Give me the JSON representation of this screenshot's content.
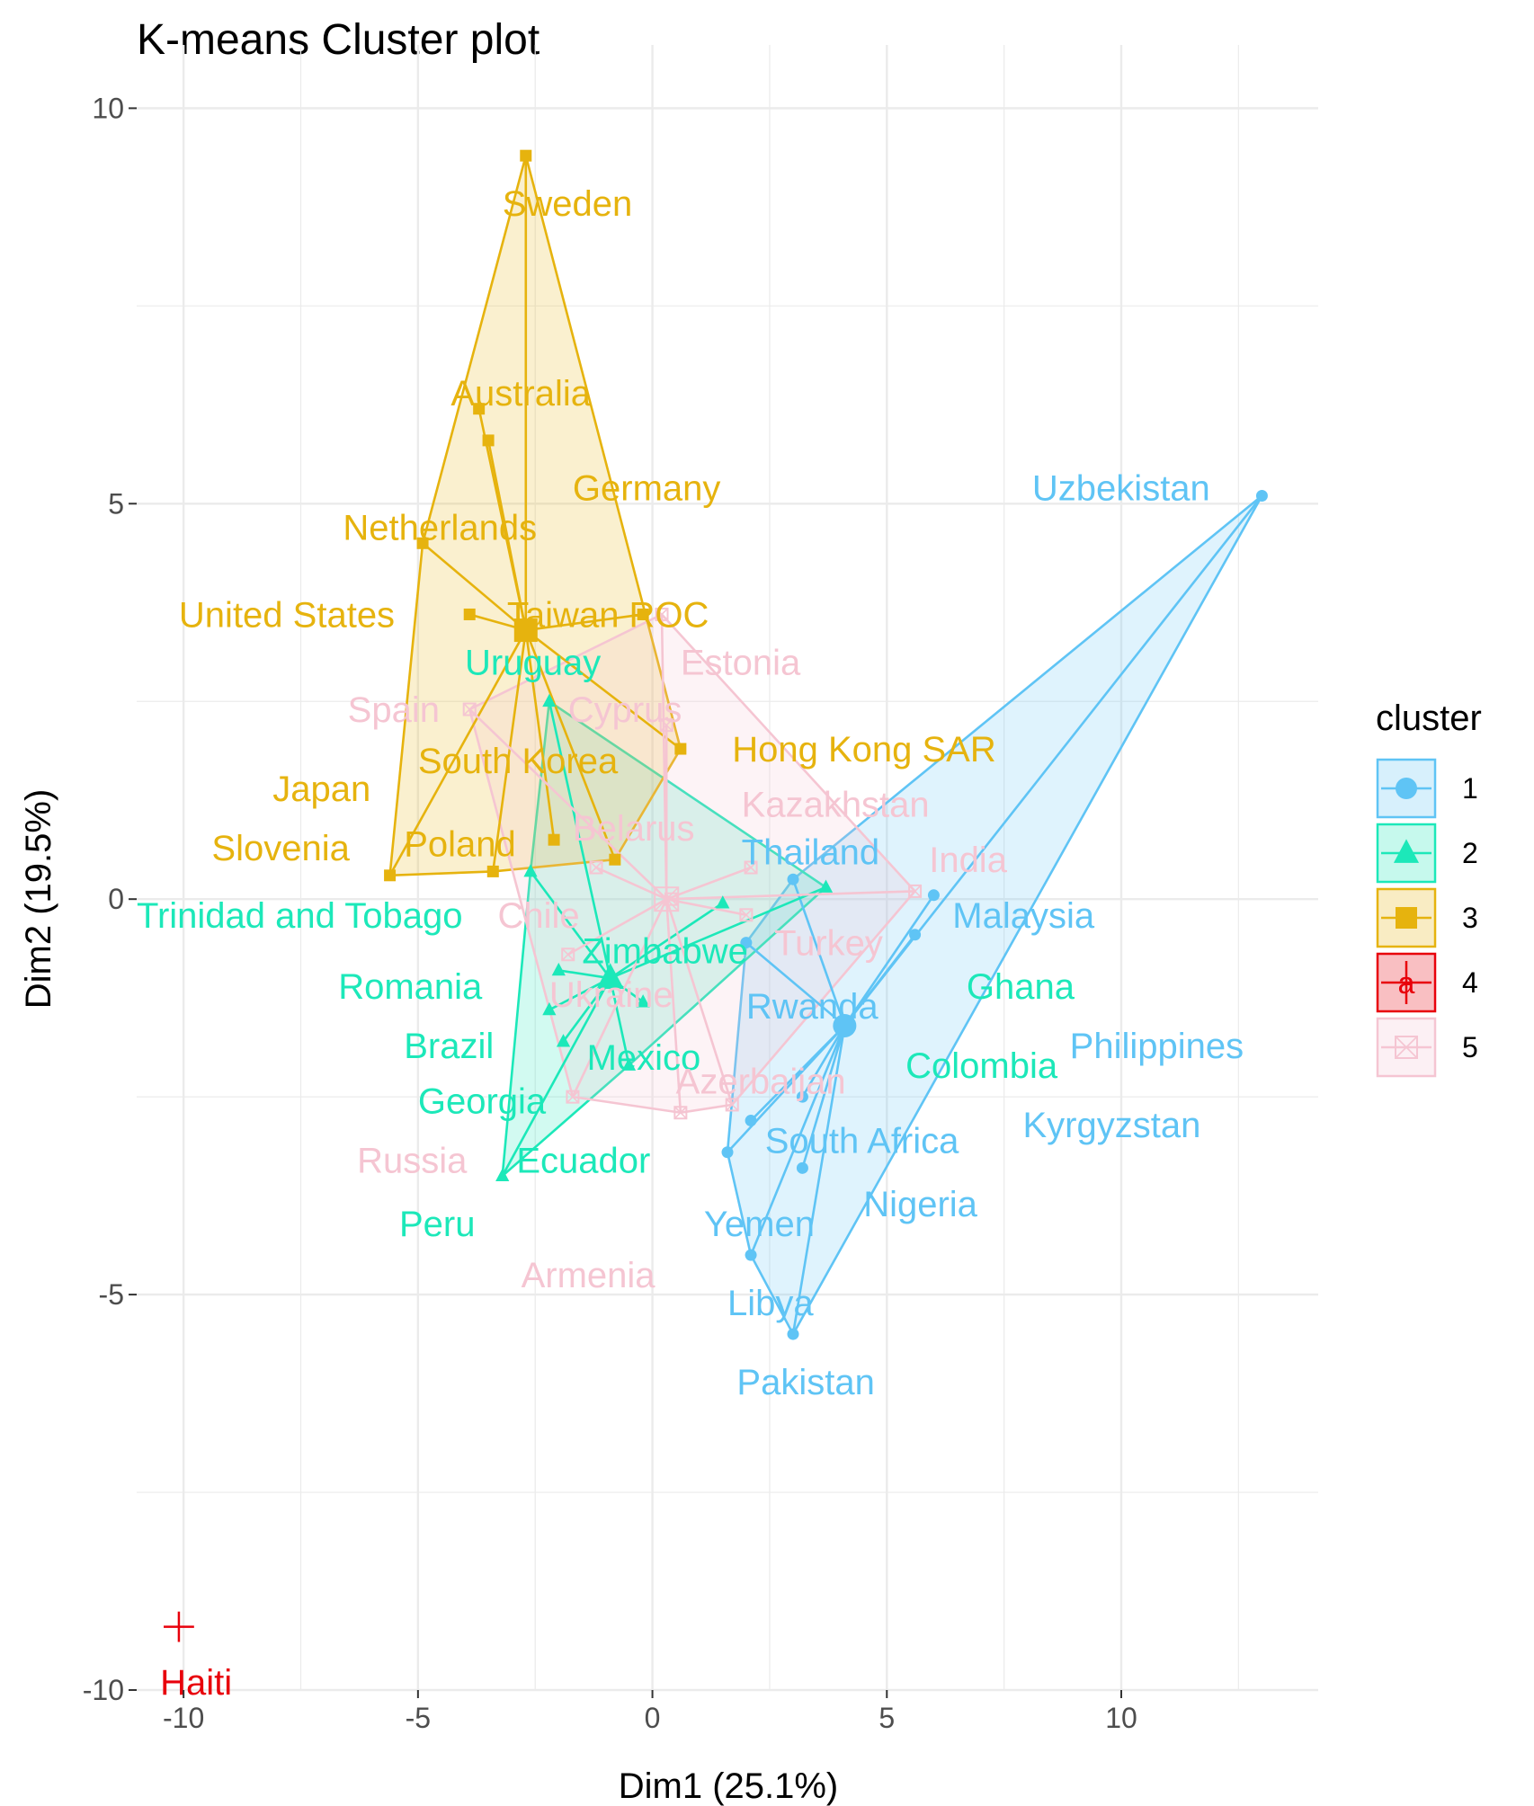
{
  "chart_data": {
    "type": "scatter",
    "title": "K-means Cluster plot",
    "xlabel": "Dim1 (25.1%)",
    "ylabel": "Dim2 (19.5%)",
    "xlim": [
      -11,
      14.2
    ],
    "ylim": [
      -10,
      10.8
    ],
    "xticks": [
      -10,
      -5,
      0,
      5,
      10
    ],
    "xtick_labels": [
      "-10",
      "-5",
      "0",
      "5",
      "10"
    ],
    "yticks": [
      -10,
      -5,
      0,
      5,
      10
    ],
    "ytick_labels": [
      "-10",
      "-5",
      "0",
      "5",
      "10"
    ],
    "grid": true,
    "legend": {
      "title": "cluster",
      "position": "right",
      "labels": [
        "1",
        "2",
        "3",
        "4",
        "5"
      ]
    },
    "legend_glyphs": [
      "",
      "",
      "",
      "a",
      ""
    ],
    "series": [
      {
        "name": "1",
        "color": "#5fc4f5",
        "shape": "circle",
        "centroid": [
          4.1,
          -1.6
        ],
        "points": [
          {
            "label": "Uzbekistan",
            "x": 13.0,
            "y": 5.1
          },
          {
            "label": "Thailand",
            "x": 3.0,
            "y": 0.25
          },
          {
            "label": "Malaysia",
            "x": 6.0,
            "y": 0.05
          },
          {
            "label": "Ghana",
            "x": 5.6,
            "y": -0.45
          },
          {
            "label": "Rwanda",
            "x": 2.0,
            "y": -0.55
          },
          {
            "label": "Kyrgyzstan",
            "x": 3.2,
            "y": -2.5
          },
          {
            "label": "South Africa",
            "x": 2.1,
            "y": -2.8
          },
          {
            "label": "Yemen",
            "x": 1.6,
            "y": -3.2
          },
          {
            "label": "Nigeria",
            "x": 3.2,
            "y": -3.4
          },
          {
            "label": "Libya",
            "x": 2.1,
            "y": -4.5
          },
          {
            "label": "Pakistan",
            "x": 3.0,
            "y": -5.5
          }
        ]
      },
      {
        "name": "2",
        "color": "#1ce8b9",
        "shape": "triangle",
        "centroid": [
          -0.9,
          -1.0
        ],
        "points": [
          {
            "label": "Uruguay",
            "x": -2.2,
            "y": 2.5
          },
          {
            "label": "Trinidad and Tobago",
            "x": -2.6,
            "y": 0.35
          },
          {
            "label": "Colombia",
            "x": 3.7,
            "y": 0.15
          },
          {
            "label": "Zimbabwe",
            "x": 1.5,
            "y": -0.05
          },
          {
            "label": "Romania",
            "x": -2.0,
            "y": -0.9
          },
          {
            "label": "Mexico",
            "x": -0.2,
            "y": -1.3
          },
          {
            "label": "Brazil",
            "x": -2.2,
            "y": -1.4
          },
          {
            "label": "Georgia",
            "x": -1.9,
            "y": -1.8
          },
          {
            "label": "Ecuador",
            "x": -0.5,
            "y": -2.1
          },
          {
            "label": "Peru",
            "x": -3.2,
            "y": -3.5
          }
        ]
      },
      {
        "name": "3",
        "color": "#e6b30e",
        "shape": "square",
        "centroid": [
          -2.7,
          3.4
        ],
        "points": [
          {
            "label": "Sweden",
            "x": -2.7,
            "y": 9.4
          },
          {
            "label": "Australia",
            "x": -3.7,
            "y": 6.2
          },
          {
            "label": "Germany",
            "x": -3.5,
            "y": 5.8
          },
          {
            "label": "Netherlands",
            "x": -4.9,
            "y": 4.5
          },
          {
            "label": "Taiwan ROC",
            "x": -0.2,
            "y": 3.6
          },
          {
            "label": "United States",
            "x": -3.9,
            "y": 3.6
          },
          {
            "label": "Hong Kong SAR",
            "x": 0.6,
            "y": 1.9
          },
          {
            "label": "South Korea",
            "x": -2.1,
            "y": 0.75
          },
          {
            "label": "Poland",
            "x": -0.8,
            "y": 0.5
          },
          {
            "label": "Japan",
            "x": -3.4,
            "y": 0.35
          },
          {
            "label": "Slovenia",
            "x": -5.6,
            "y": 0.3
          }
        ]
      },
      {
        "name": "4",
        "color": "#e8000b",
        "shape": "plus",
        "centroid": [
          -10.1,
          -9.2
        ],
        "points": [
          {
            "label": "Haiti",
            "x": -10.1,
            "y": -9.2
          }
        ]
      },
      {
        "name": "5",
        "color": "#f5c5d2",
        "shape": "square-x",
        "centroid": [
          0.3,
          0.0
        ],
        "points": [
          {
            "label": "Estonia",
            "x": 0.2,
            "y": 3.6
          },
          {
            "label": "Spain",
            "x": -3.9,
            "y": 2.4
          },
          {
            "label": "Cyprus",
            "x": 0.3,
            "y": 2.2
          },
          {
            "label": "Kazakhstan",
            "x": 2.1,
            "y": 0.4
          },
          {
            "label": "Belarus",
            "x": -1.2,
            "y": 0.4
          },
          {
            "label": "India",
            "x": 5.6,
            "y": 0.1
          },
          {
            "label": "Chile",
            "x": 0.4,
            "y": 0.0
          },
          {
            "label": "Turkey",
            "x": 2.0,
            "y": -0.2
          },
          {
            "label": "Ukraine",
            "x": -1.8,
            "y": -0.7
          },
          {
            "label": "Azerbaijan",
            "x": 1.7,
            "y": -2.6
          },
          {
            "label": "Russia",
            "x": -1.7,
            "y": -2.5
          },
          {
            "label": "Armenia",
            "x": 0.6,
            "y": -2.7
          }
        ]
      }
    ],
    "labels": [
      {
        "text": "Sweden",
        "x": -3.2,
        "y": 8.8,
        "s": 2
      },
      {
        "text": "Australia",
        "x": -4.3,
        "y": 6.4,
        "s": 2
      },
      {
        "text": "Germany",
        "x": -1.7,
        "y": 5.2,
        "s": 2
      },
      {
        "text": "Netherlands",
        "x": -6.6,
        "y": 4.7,
        "s": 2
      },
      {
        "text": "Taiwan ROC",
        "x": -3.1,
        "y": 3.6,
        "s": 2
      },
      {
        "text": "United States",
        "x": -10.1,
        "y": 3.6,
        "s": 2
      },
      {
        "text": "Uruguay",
        "x": -4.0,
        "y": 3.0,
        "s": 1
      },
      {
        "text": "Estonia",
        "x": 0.6,
        "y": 3.0,
        "s": 4
      },
      {
        "text": "Spain",
        "x": -6.5,
        "y": 2.4,
        "s": 4
      },
      {
        "text": "Cyprus",
        "x": -1.8,
        "y": 2.4,
        "s": 4
      },
      {
        "text": "Hong Kong SAR",
        "x": 1.7,
        "y": 1.9,
        "s": 2
      },
      {
        "text": "South Korea",
        "x": -5.0,
        "y": 1.75,
        "s": 2
      },
      {
        "text": "Japan",
        "x": -8.1,
        "y": 1.4,
        "s": 2
      },
      {
        "text": "Kazakhstan",
        "x": 1.9,
        "y": 1.2,
        "s": 4
      },
      {
        "text": "Belarus",
        "x": -1.7,
        "y": 0.9,
        "s": 4
      },
      {
        "text": "Slovenia",
        "x": -9.4,
        "y": 0.65,
        "s": 2
      },
      {
        "text": "Poland",
        "x": -5.3,
        "y": 0.7,
        "s": 2
      },
      {
        "text": "Thailand",
        "x": 1.9,
        "y": 0.6,
        "s": 0
      },
      {
        "text": "India",
        "x": 5.9,
        "y": 0.5,
        "s": 4
      },
      {
        "text": "Trinidad and Tobago",
        "x": -11.0,
        "y": -0.2,
        "s": 1
      },
      {
        "text": "Chile",
        "x": -3.3,
        "y": -0.2,
        "s": 4
      },
      {
        "text": "Malaysia",
        "x": 6.4,
        "y": -0.2,
        "s": 0
      },
      {
        "text": "Turkey",
        "x": 2.6,
        "y": -0.55,
        "s": 4
      },
      {
        "text": "Zimbabwe",
        "x": -1.5,
        "y": -0.65,
        "s": 1
      },
      {
        "text": "Ukraine",
        "x": -2.2,
        "y": -1.2,
        "s": 4
      },
      {
        "text": "Romania",
        "x": -6.7,
        "y": -1.1,
        "s": 1
      },
      {
        "text": "Ghana",
        "x": 6.7,
        "y": -1.1,
        "s": 1
      },
      {
        "text": "Rwanda",
        "x": 2.0,
        "y": -1.35,
        "s": 0
      },
      {
        "text": "Brazil",
        "x": -5.3,
        "y": -1.85,
        "s": 1
      },
      {
        "text": "Philippines",
        "x": 8.9,
        "y": -1.85,
        "s": 0
      },
      {
        "text": "Mexico",
        "x": -1.4,
        "y": -2.0,
        "s": 1
      },
      {
        "text": "Colombia",
        "x": 5.4,
        "y": -2.1,
        "s": 1
      },
      {
        "text": "Azerbaijan",
        "x": 0.5,
        "y": -2.3,
        "s": 4
      },
      {
        "text": "Georgia",
        "x": -5.0,
        "y": -2.55,
        "s": 1
      },
      {
        "text": "Kyrgyzstan",
        "x": 7.9,
        "y": -2.85,
        "s": 0
      },
      {
        "text": "South Africa",
        "x": 2.4,
        "y": -3.05,
        "s": 0
      },
      {
        "text": "Russia",
        "x": -6.3,
        "y": -3.3,
        "s": 4
      },
      {
        "text": "Ecuador",
        "x": -2.9,
        "y": -3.3,
        "s": 1
      },
      {
        "text": "Nigeria",
        "x": 4.5,
        "y": -3.85,
        "s": 0
      },
      {
        "text": "Yemen",
        "x": 1.1,
        "y": -4.1,
        "s": 0
      },
      {
        "text": "Peru",
        "x": -5.4,
        "y": -4.1,
        "s": 1
      },
      {
        "text": "Armenia",
        "x": -2.8,
        "y": -4.75,
        "s": 4
      },
      {
        "text": "Libya",
        "x": 1.6,
        "y": -5.1,
        "s": 0
      },
      {
        "text": "Pakistan",
        "x": 1.8,
        "y": -6.1,
        "s": 0
      },
      {
        "text": "Uzbekistan",
        "x": 8.1,
        "y": 5.2,
        "s": 0
      },
      {
        "text": "Haiti",
        "x": -10.5,
        "y": -9.9,
        "s": 3
      }
    ]
  }
}
